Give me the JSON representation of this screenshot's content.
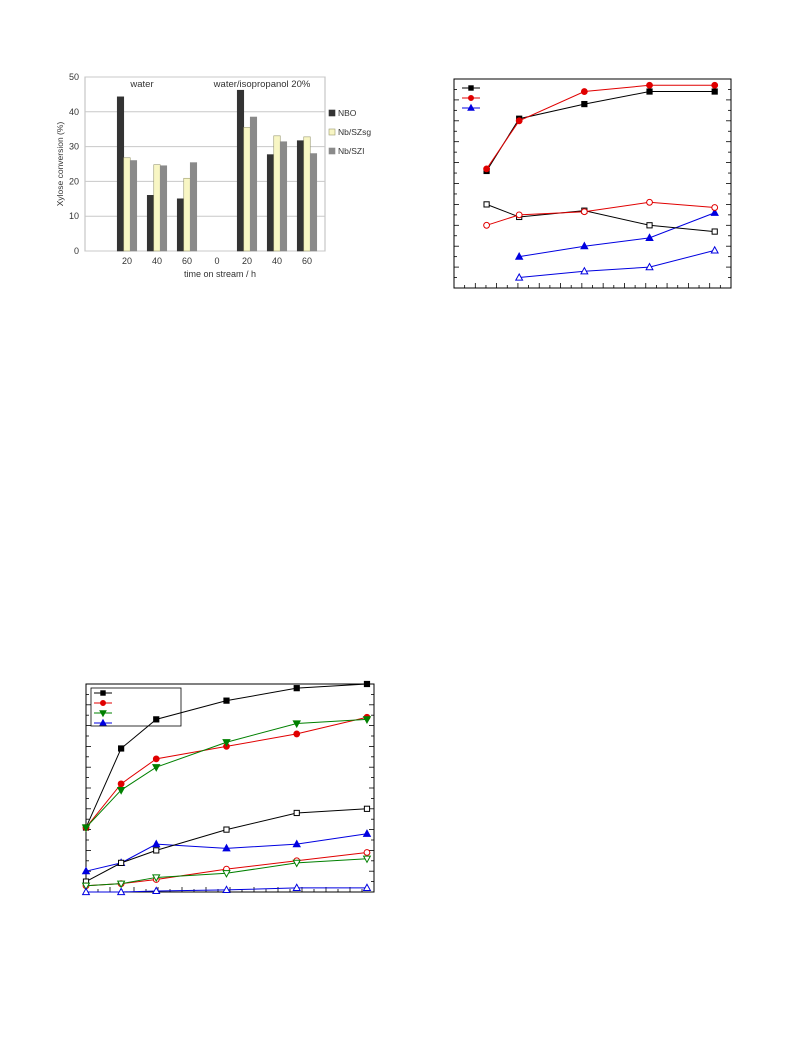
{
  "chart_data": [
    {
      "type": "bar",
      "title": "",
      "xlabel": "time on stream / h",
      "ylabel": "Xylose conversion (%)",
      "ylim": [
        0,
        50
      ],
      "yticks": [
        0,
        10,
        20,
        30,
        40,
        50
      ],
      "grid": true,
      "legend_position": "right",
      "groups": [
        "water",
        "water/isopropanol 20%"
      ],
      "categories": [
        "20",
        "40",
        "60",
        "0",
        "20",
        "40",
        "60"
      ],
      "series": [
        {
          "name": "NBO",
          "color": "#333333",
          "values": [
            44.3,
            16,
            15,
            null,
            46.2,
            27.7,
            31.7
          ]
        },
        {
          "name": "Nb/SZsg",
          "color": "#f8f6c4",
          "values": [
            26.8,
            24.8,
            20.9,
            null,
            35.5,
            33.1,
            32.8
          ]
        },
        {
          "name": "Nb/SZI",
          "color": "#8a8a8a",
          "values": [
            26,
            24.5,
            25.4,
            null,
            38.5,
            31.4,
            28
          ]
        }
      ]
    },
    {
      "type": "line",
      "title": "",
      "xlabel": "",
      "ylabel": "",
      "xlim": [
        0,
        8.5
      ],
      "ylim": [
        0,
        100
      ],
      "grid": false,
      "legend_position": "top-left",
      "series": [
        {
          "name": "",
          "color": "#000000",
          "marker": "square",
          "filled": true,
          "x": [
            1,
            2,
            4,
            6,
            8
          ],
          "y": [
            56,
            81,
            88,
            94,
            94
          ]
        },
        {
          "name": "",
          "color": "#e00000",
          "marker": "circle",
          "filled": true,
          "x": [
            1,
            2,
            4,
            6,
            8
          ],
          "y": [
            57,
            80,
            94,
            97,
            97
          ]
        },
        {
          "name": "",
          "color": "#0000e0",
          "marker": "triangle",
          "filled": true,
          "x": [
            2,
            4,
            6,
            8
          ],
          "y": [
            15,
            20,
            24,
            36
          ]
        },
        {
          "name": "",
          "color": "#000000",
          "marker": "square",
          "filled": false,
          "x": [
            1,
            2,
            4,
            6,
            8
          ],
          "y": [
            40,
            34,
            37,
            30,
            27
          ]
        },
        {
          "name": "",
          "color": "#e00000",
          "marker": "circle",
          "filled": false,
          "x": [
            1,
            2,
            4,
            6,
            8
          ],
          "y": [
            30,
            35,
            36.5,
            41,
            38.5
          ]
        },
        {
          "name": "",
          "color": "#0000e0",
          "marker": "triangle",
          "filled": false,
          "x": [
            2,
            4,
            6,
            8
          ],
          "y": [
            5,
            8,
            10,
            18
          ]
        }
      ]
    },
    {
      "type": "line",
      "title": "",
      "xlabel": "",
      "ylabel": "",
      "xlim": [
        0,
        8.2
      ],
      "ylim": [
        0,
        100
      ],
      "grid": false,
      "legend_position": "top-left",
      "series": [
        {
          "name": "",
          "color": "#000000",
          "marker": "square",
          "filled": true,
          "x": [
            0,
            1,
            2,
            4,
            6,
            8
          ],
          "y": [
            31,
            69,
            83,
            92,
            98,
            100
          ]
        },
        {
          "name": "",
          "color": "#e00000",
          "marker": "circle",
          "filled": true,
          "x": [
            0,
            1,
            2,
            4,
            6,
            8
          ],
          "y": [
            31,
            52,
            64,
            70,
            76,
            84
          ]
        },
        {
          "name": "",
          "color": "#008000",
          "marker": "triangle-down",
          "filled": true,
          "x": [
            0,
            1,
            2,
            4,
            6,
            8
          ],
          "y": [
            31,
            49,
            60,
            72,
            81,
            83
          ]
        },
        {
          "name": "",
          "color": "#0000e0",
          "marker": "triangle",
          "filled": true,
          "x": [
            0,
            1,
            2,
            4,
            6,
            8
          ],
          "y": [
            10,
            14,
            23,
            21,
            23,
            28
          ]
        },
        {
          "name": "",
          "color": "#000000",
          "marker": "square",
          "filled": false,
          "x": [
            0,
            1,
            2,
            4,
            6,
            8
          ],
          "y": [
            5,
            14,
            20,
            30,
            38,
            40
          ]
        },
        {
          "name": "",
          "color": "#e00000",
          "marker": "circle",
          "filled": false,
          "x": [
            0,
            1,
            2,
            4,
            6,
            8
          ],
          "y": [
            3,
            4,
            6,
            11,
            15,
            19
          ]
        },
        {
          "name": "",
          "color": "#008000",
          "marker": "triangle-down",
          "filled": false,
          "x": [
            0,
            1,
            2,
            4,
            6,
            8
          ],
          "y": [
            3,
            4,
            7,
            9,
            14,
            16
          ]
        },
        {
          "name": "",
          "color": "#0000e0",
          "marker": "triangle",
          "filled": false,
          "x": [
            0,
            1,
            2,
            4,
            6,
            8
          ],
          "y": [
            0,
            0,
            0.5,
            1,
            2,
            2
          ]
        }
      ]
    }
  ]
}
